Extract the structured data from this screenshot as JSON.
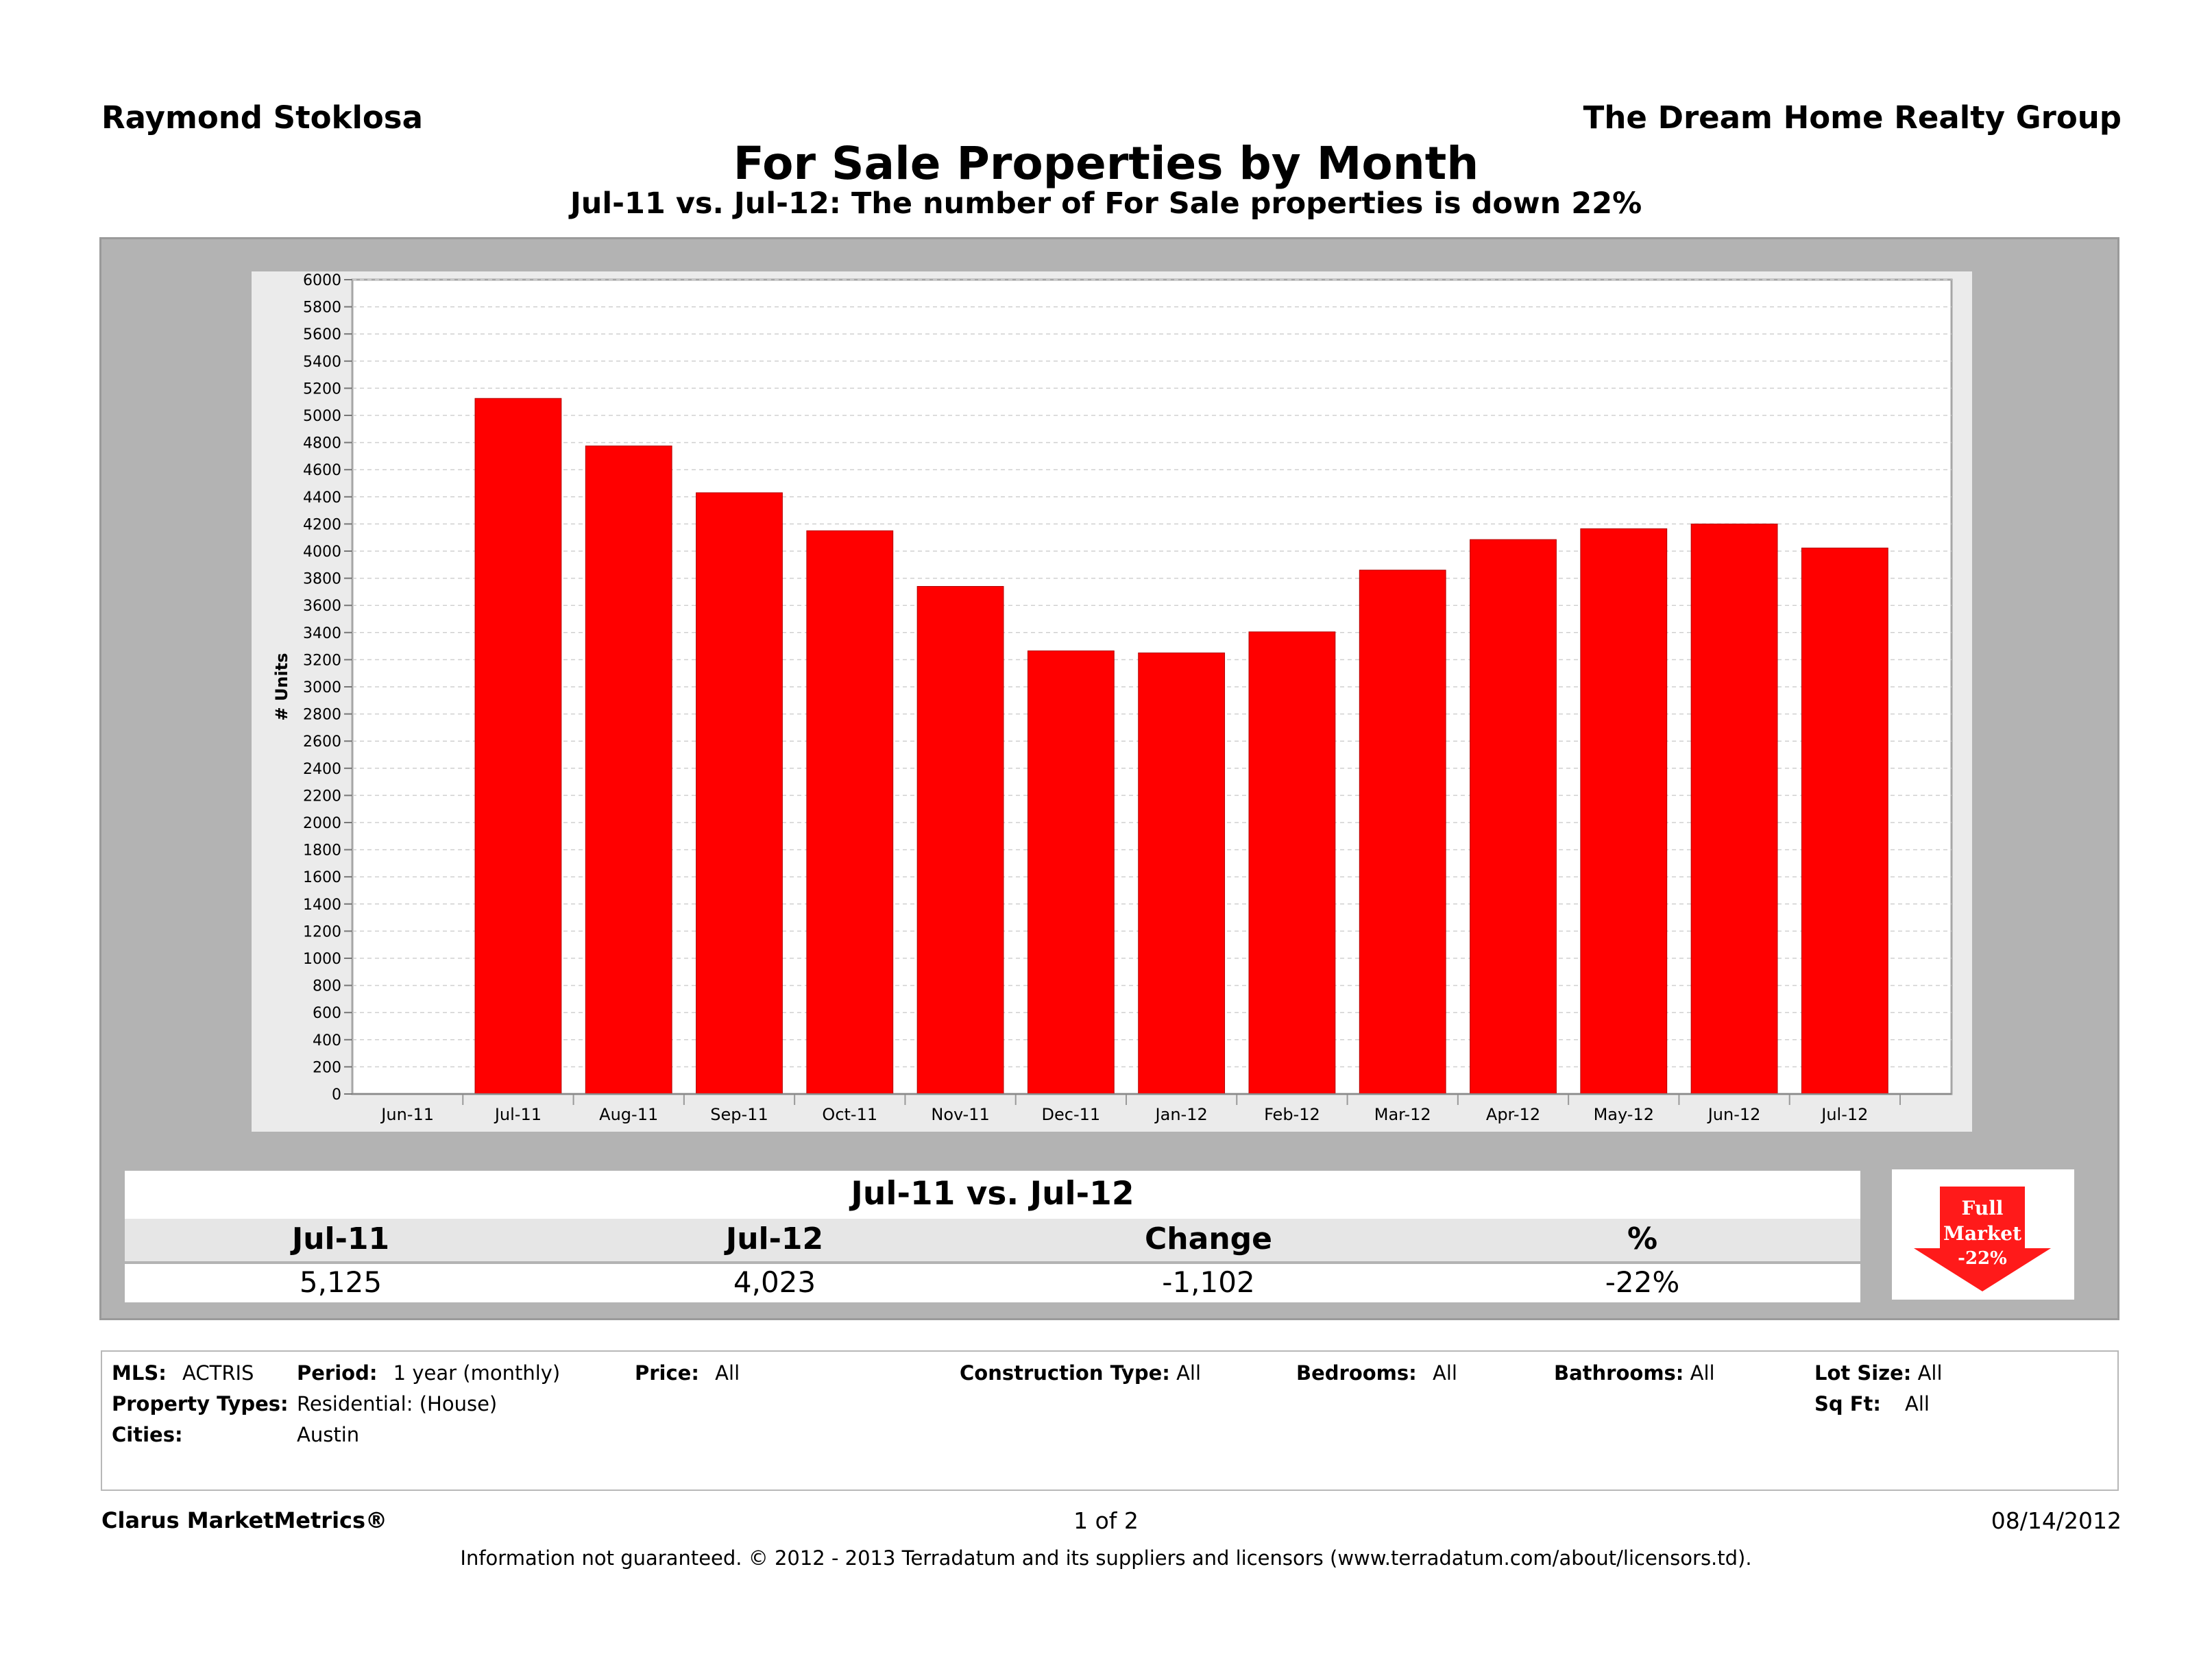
{
  "header": {
    "agent": "Raymond Stoklosa",
    "company": "The Dream Home Realty Group",
    "title": "For Sale Properties by Month",
    "subtitle": "Jul-11 vs. Jul-12: The number of For Sale properties is down 22%"
  },
  "chart_data": {
    "type": "bar",
    "categories": [
      "Jun-11",
      "Jul-11",
      "Aug-11",
      "Sep-11",
      "Oct-11",
      "Nov-11",
      "Dec-11",
      "Jan-12",
      "Feb-12",
      "Mar-12",
      "Apr-12",
      "May-12",
      "Jun-12",
      "Jul-12"
    ],
    "values": [
      null,
      5125,
      4775,
      4430,
      4150,
      3740,
      3265,
      3250,
      3405,
      3860,
      4085,
      4165,
      4200,
      4023
    ],
    "ylabel": "# Units",
    "ylim": [
      0,
      6000
    ],
    "yticks": [
      0,
      200,
      400,
      600,
      800,
      1000,
      1200,
      1400,
      1600,
      1800,
      2000,
      2200,
      2400,
      2600,
      2800,
      3000,
      3200,
      3400,
      3600,
      3800,
      4000,
      4200,
      4400,
      4600,
      4800,
      5000,
      5200,
      5400,
      5600,
      5800,
      6000
    ],
    "bar_color": "#ff0000",
    "grid": true
  },
  "summary": {
    "title": "Jul-11 vs. Jul-12",
    "headers": [
      "Jul-11",
      "Jul-12",
      "Change",
      "%"
    ],
    "values": [
      "5,125",
      "4,023",
      "-1,102",
      "-22%"
    ]
  },
  "badge": {
    "line1": "Full",
    "line2": "Market",
    "line3": "-22%",
    "color": "#ff1a1a"
  },
  "criteria": {
    "mls_label": "MLS:",
    "mls_value": "ACTRIS",
    "period_label": "Period:",
    "period_value": "1 year (monthly)",
    "price_label": "Price:",
    "price_value": "All",
    "construction_label": "Construction Type:",
    "construction_value": "All",
    "bedrooms_label": "Bedrooms:",
    "bedrooms_value": "All",
    "bathrooms_label": "Bathrooms:",
    "bathrooms_value": "All",
    "lotsize_label": "Lot Size:",
    "lotsize_value": "All",
    "proptypes_label": "Property Types:",
    "proptypes_value": "Residential: (House)",
    "sqft_label": "Sq Ft:",
    "sqft_value": "All",
    "cities_label": "Cities:",
    "cities_value": "Austin"
  },
  "footer": {
    "brand": "Clarus MarketMetrics®",
    "page": "1 of 2",
    "date": "08/14/2012",
    "disclaimer": "Information not guaranteed.  © 2012 - 2013 Terradatum and its suppliers and licensors (www.terradatum.com/about/licensors.td)."
  }
}
